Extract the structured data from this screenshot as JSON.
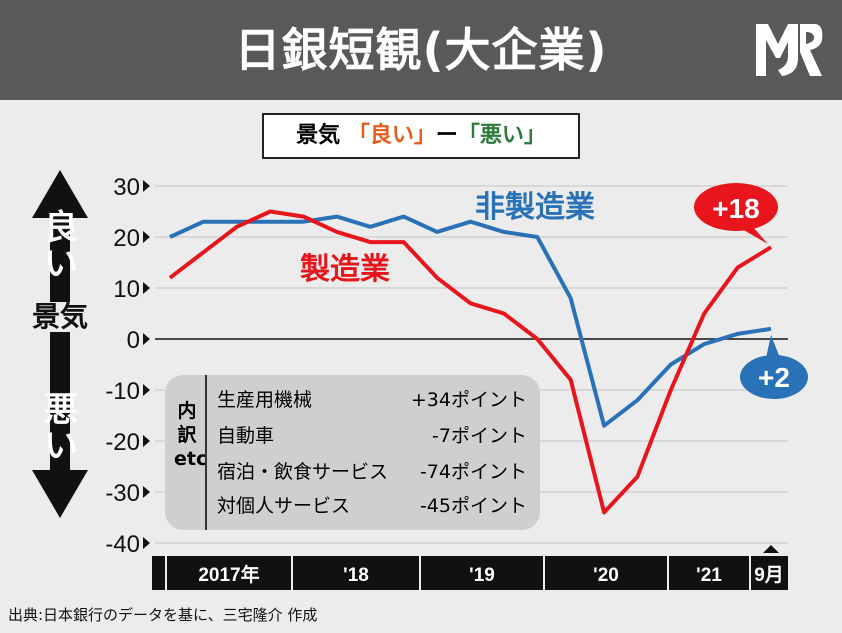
{
  "header": {
    "title": "日銀短観(大企業)"
  },
  "legend": {
    "prefix": "景気",
    "good": "「良い」",
    "dash": "ー",
    "bad": "「悪い」"
  },
  "side": {
    "good": "良い",
    "mid": "景気",
    "bad": "悪い"
  },
  "inset": {
    "label": "内訳etc",
    "rows": [
      {
        "name": "生産用機械",
        "value": "+34ポイント"
      },
      {
        "name": "自動車",
        "value": "-7ポイント"
      },
      {
        "name": "宿泊・飲食サービス",
        "value": "-74ポイント"
      },
      {
        "name": "対個人サービス",
        "value": "-45ポイント"
      }
    ]
  },
  "footer": {
    "source": "出典:日本銀行のデータを基に、三宅隆介 作成"
  },
  "colors": {
    "manufacturing": "#e8161c",
    "non_manufacturing": "#2a72b8",
    "header_bg": "#595959",
    "good_label": "#e85c1a",
    "bad_label": "#2e7a3a"
  },
  "chart_data": {
    "type": "line",
    "ylim": [
      -40,
      30
    ],
    "yticks": [
      30,
      20,
      10,
      0,
      -10,
      -20,
      -30,
      -40
    ],
    "ytick_labels": [
      "30",
      "20",
      "10",
      "0",
      "-10",
      "-20",
      "-30",
      "-40"
    ],
    "x_periods": [
      "2017-03",
      "2017-06",
      "2017-09",
      "2017-12",
      "2018-03",
      "2018-06",
      "2018-09",
      "2018-12",
      "2019-03",
      "2019-06",
      "2019-09",
      "2019-12",
      "2020-03",
      "2020-06",
      "2020-09",
      "2020-12",
      "2021-03",
      "2021-06",
      "2021-09"
    ],
    "year_labels": [
      "2017年",
      "'18",
      "'19",
      "'20",
      "'21",
      "9月"
    ],
    "series": [
      {
        "name": "製造業",
        "values": [
          12,
          17,
          22,
          25,
          24,
          21,
          19,
          19,
          12,
          7,
          5,
          0,
          -8,
          -34,
          -27,
          -10,
          5,
          14,
          18
        ]
      },
      {
        "name": "非製造業",
        "values": [
          20,
          23,
          23,
          23,
          23,
          24,
          22,
          24,
          21,
          23,
          21,
          20,
          8,
          -17,
          -12,
          -5,
          -1,
          1,
          2
        ]
      }
    ],
    "end_labels": {
      "manufacturing": "+18",
      "non_manufacturing": "+2"
    },
    "grid": true
  }
}
